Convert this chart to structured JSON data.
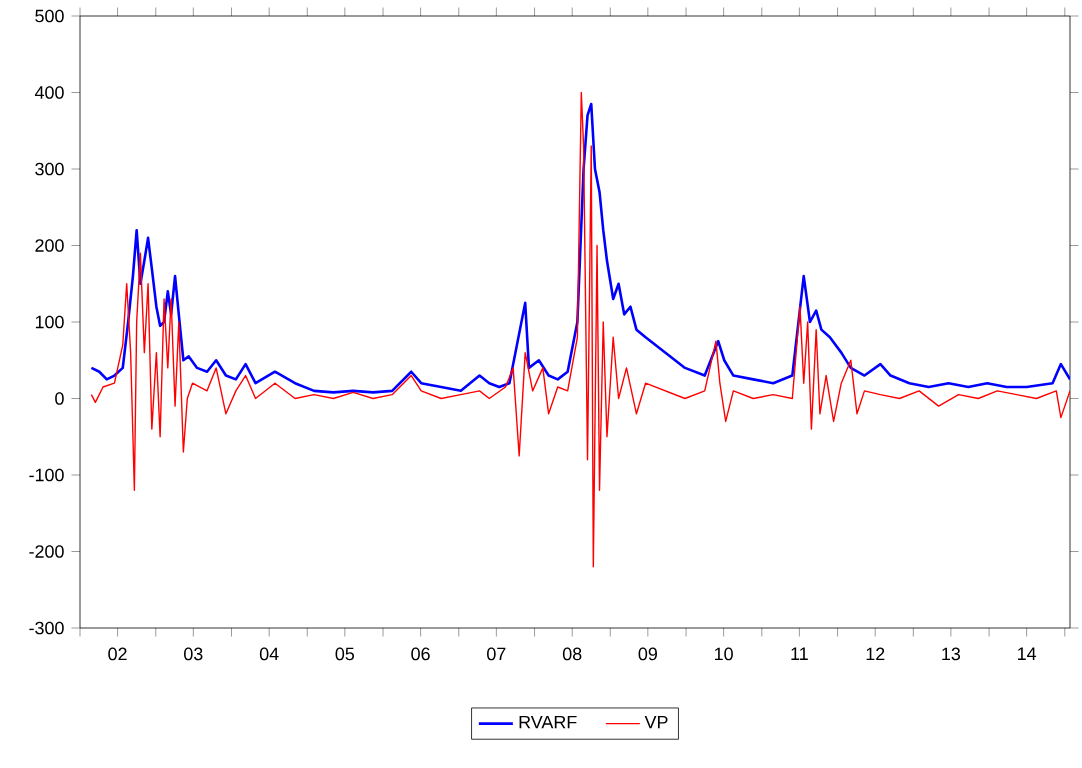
{
  "chart_data": {
    "type": "line",
    "xlim": [
      "2002-01-01",
      "2015-01-26"
    ],
    "ylim": [
      -300,
      500
    ],
    "yticks": [
      -300,
      -200,
      -100,
      0,
      100,
      200,
      300,
      400,
      500
    ],
    "xticks": [
      {
        "value": "2002-01-01",
        "label": null
      },
      {
        "value": "2002-07-01",
        "label": "02"
      },
      {
        "value": "2003-01-01",
        "label": null
      },
      {
        "value": "2003-07-01",
        "label": "03"
      },
      {
        "value": "2004-01-01",
        "label": null
      },
      {
        "value": "2004-07-01",
        "label": "04"
      },
      {
        "value": "2005-01-01",
        "label": null
      },
      {
        "value": "2005-07-01",
        "label": "05"
      },
      {
        "value": "2006-01-01",
        "label": null
      },
      {
        "value": "2006-07-01",
        "label": "06"
      },
      {
        "value": "2007-01-01",
        "label": null
      },
      {
        "value": "2007-07-01",
        "label": "07"
      },
      {
        "value": "2008-01-01",
        "label": null
      },
      {
        "value": "2008-07-01",
        "label": "08"
      },
      {
        "value": "2009-01-01",
        "label": null
      },
      {
        "value": "2009-07-01",
        "label": "09"
      },
      {
        "value": "2010-01-01",
        "label": null
      },
      {
        "value": "2010-07-01",
        "label": "10"
      },
      {
        "value": "2011-01-01",
        "label": null
      },
      {
        "value": "2011-07-01",
        "label": "11"
      },
      {
        "value": "2012-01-01",
        "label": null
      },
      {
        "value": "2012-07-01",
        "label": "12"
      },
      {
        "value": "2013-01-01",
        "label": null
      },
      {
        "value": "2013-07-01",
        "label": "13"
      },
      {
        "value": "2014-01-01",
        "label": null
      },
      {
        "value": "2014-07-01",
        "label": "14"
      },
      {
        "value": "2015-01-01",
        "label": null
      }
    ],
    "grid": false,
    "legend": "bottom",
    "marker": "none",
    "line_style": "solid",
    "series": [
      {
        "name": "RVARF",
        "color": "#0000ff",
        "x": [
          "2002-02-25",
          "2002-04-04",
          "2002-05-10",
          "2002-06-16",
          "2002-07-26",
          "2002-08-21",
          "2002-09-13",
          "2002-10-01",
          "2002-10-19",
          "2002-11-07",
          "2002-11-25",
          "2002-12-13",
          "2003-01-04",
          "2003-01-22",
          "2003-02-10",
          "2003-02-28",
          "2003-03-16",
          "2003-04-04",
          "2003-04-22",
          "2003-05-14",
          "2003-06-09",
          "2003-07-19",
          "2003-09-05",
          "2003-10-19",
          "2003-12-05",
          "2004-01-22",
          "2004-03-09",
          "2004-04-26",
          "2004-07-29",
          "2004-11-03",
          "2005-02-03",
          "2005-05-07",
          "2005-08-10",
          "2005-11-14",
          "2006-02-14",
          "2006-05-17",
          "2006-07-04",
          "2006-10-08",
          "2007-01-11",
          "2007-04-11",
          "2007-05-28",
          "2007-07-15",
          "2007-09-02",
          "2007-11-17",
          "2007-12-05",
          "2008-01-22",
          "2008-03-09",
          "2008-04-22",
          "2008-06-09",
          "2008-07-26",
          "2008-08-25",
          "2008-09-13",
          "2008-10-01",
          "2008-10-19",
          "2008-11-10",
          "2008-11-28",
          "2008-12-16",
          "2009-01-15",
          "2009-02-10",
          "2009-03-09",
          "2009-04-08",
          "2009-05-07",
          "2009-06-20",
          "2009-09-23",
          "2009-12-27",
          "2010-04-01",
          "2010-06-05",
          "2010-07-04",
          "2010-08-17",
          "2010-11-21",
          "2011-02-25",
          "2011-05-28",
          "2011-07-22",
          "2011-08-21",
          "2011-09-20",
          "2011-10-15",
          "2011-11-25",
          "2012-01-19",
          "2012-03-05",
          "2012-05-10",
          "2012-07-26",
          "2012-09-13",
          "2012-12-13",
          "2013-03-16",
          "2013-06-20",
          "2013-09-23",
          "2013-12-23",
          "2014-03-27",
          "2014-07-01",
          "2014-11-03",
          "2014-12-13",
          "2015-01-26"
        ],
        "values": [
          40,
          35,
          25,
          30,
          40,
          100,
          160,
          220,
          150,
          180,
          210,
          170,
          120,
          95,
          100,
          140,
          110,
          160,
          110,
          50,
          55,
          40,
          35,
          50,
          30,
          25,
          45,
          20,
          35,
          20,
          10,
          8,
          10,
          8,
          10,
          35,
          20,
          15,
          10,
          30,
          20,
          15,
          20,
          125,
          40,
          50,
          30,
          25,
          35,
          100,
          300,
          370,
          385,
          300,
          270,
          220,
          180,
          130,
          150,
          110,
          120,
          90,
          80,
          60,
          40,
          30,
          75,
          50,
          30,
          25,
          20,
          30,
          160,
          100,
          115,
          90,
          80,
          60,
          40,
          30,
          45,
          30,
          20,
          15,
          20,
          15,
          20,
          15,
          15,
          20,
          45,
          25
        ]
      },
      {
        "name": "VP",
        "color": "#ff0000",
        "x": [
          "2002-02-25",
          "2002-03-16",
          "2002-04-22",
          "2002-06-16",
          "2002-07-26",
          "2002-08-14",
          "2002-09-02",
          "2002-09-20",
          "2002-10-01",
          "2002-10-19",
          "2002-11-07",
          "2002-11-25",
          "2002-12-13",
          "2003-01-04",
          "2003-01-22",
          "2003-02-10",
          "2003-02-28",
          "2003-03-16",
          "2003-04-04",
          "2003-04-22",
          "2003-05-14",
          "2003-06-02",
          "2003-06-27",
          "2003-09-05",
          "2003-10-19",
          "2003-12-05",
          "2004-01-22",
          "2004-03-09",
          "2004-04-26",
          "2004-07-29",
          "2004-11-03",
          "2005-02-03",
          "2005-05-07",
          "2005-08-10",
          "2005-11-14",
          "2006-02-14",
          "2006-05-17",
          "2006-07-04",
          "2006-10-08",
          "2007-01-11",
          "2007-04-11",
          "2007-05-28",
          "2007-08-14",
          "2007-09-20",
          "2007-10-19",
          "2007-11-17",
          "2007-12-23",
          "2008-02-10",
          "2008-03-09",
          "2008-04-22",
          "2008-06-09",
          "2008-07-26",
          "2008-08-14",
          "2008-08-25",
          "2008-09-13",
          "2008-10-01",
          "2008-10-11",
          "2008-10-29",
          "2008-11-10",
          "2008-11-28",
          "2008-12-16",
          "2009-01-15",
          "2009-02-10",
          "2009-03-20",
          "2009-05-07",
          "2009-06-20",
          "2009-09-23",
          "2009-12-27",
          "2010-04-01",
          "2010-05-25",
          "2010-06-13",
          "2010-07-11",
          "2010-08-17",
          "2010-11-21",
          "2011-02-25",
          "2011-05-28",
          "2011-07-04",
          "2011-07-22",
          "2011-08-10",
          "2011-08-28",
          "2011-09-20",
          "2011-10-08",
          "2011-11-07",
          "2011-12-13",
          "2012-01-19",
          "2012-03-05",
          "2012-04-04",
          "2012-05-10",
          "2012-07-26",
          "2012-10-26",
          "2013-01-29",
          "2013-05-03",
          "2013-08-07",
          "2013-11-10",
          "2014-02-10",
          "2014-05-14",
          "2014-08-17",
          "2014-11-21",
          "2014-12-13",
          "2015-01-26"
        ],
        "values": [
          5,
          -5,
          15,
          20,
          70,
          150,
          60,
          -120,
          100,
          190,
          60,
          150,
          -40,
          60,
          -50,
          130,
          40,
          130,
          -10,
          100,
          -70,
          0,
          20,
          10,
          40,
          -20,
          10,
          30,
          0,
          20,
          0,
          5,
          0,
          8,
          0,
          5,
          30,
          10,
          0,
          5,
          10,
          0,
          15,
          40,
          -75,
          60,
          10,
          40,
          -20,
          15,
          10,
          80,
          400,
          330,
          -80,
          330,
          -220,
          200,
          -120,
          100,
          -50,
          80,
          0,
          40,
          -20,
          20,
          10,
          0,
          10,
          75,
          20,
          -30,
          10,
          0,
          5,
          0,
          120,
          20,
          100,
          -40,
          90,
          -20,
          30,
          -30,
          20,
          50,
          -20,
          10,
          5,
          0,
          10,
          -10,
          5,
          0,
          10,
          5,
          0,
          10,
          -25,
          10
        ]
      }
    ]
  }
}
